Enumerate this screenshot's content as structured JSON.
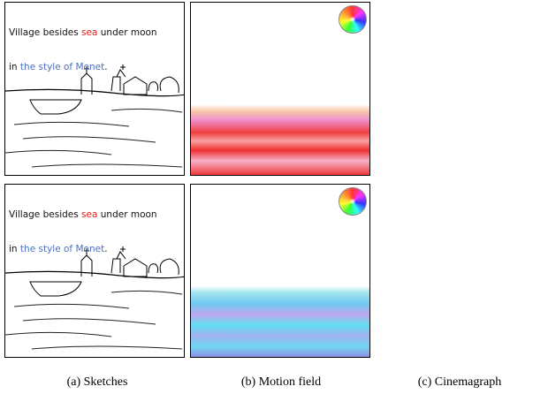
{
  "figure": {
    "panels": [
      {
        "prompt": {
          "line1": [
            "Village besides ",
            "sea",
            " under moon"
          ],
          "line2": [
            "in ",
            "the style of Monet",
            "."
          ]
        }
      },
      {
        "prompt": {
          "line1": [
            "Village besides ",
            "sea",
            " under moon"
          ],
          "line2": [
            "in ",
            "the style of Monet",
            "."
          ]
        }
      }
    ],
    "captions": [
      "(a) Sketches",
      "(b) Motion field",
      "(c) Cinemagraph"
    ]
  }
}
